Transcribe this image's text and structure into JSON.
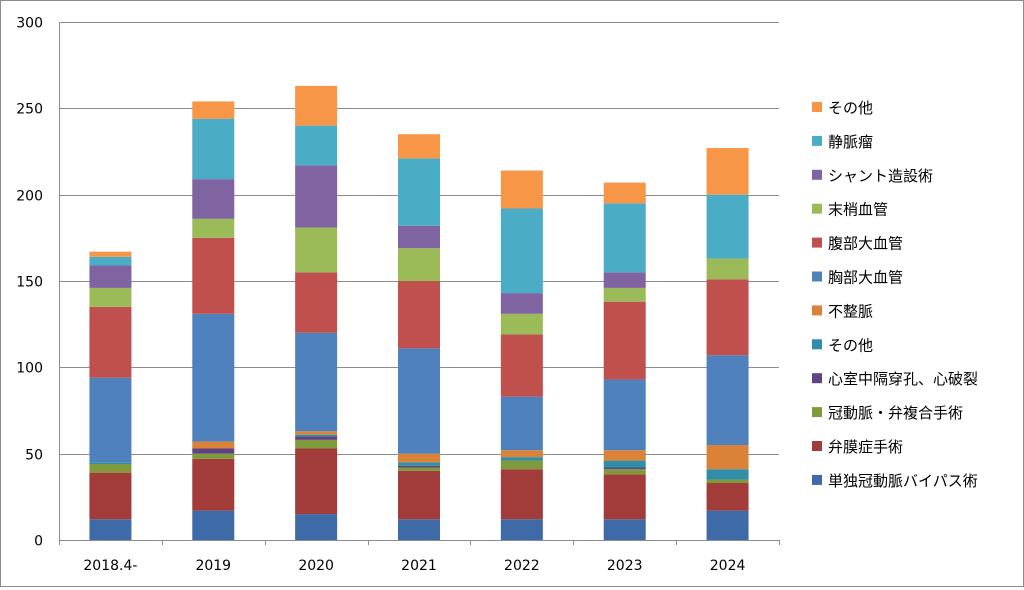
{
  "chart_data": {
    "type": "bar",
    "stacked": true,
    "categories": [
      "2018.4-",
      "2019",
      "2020",
      "2021",
      "2022",
      "2023",
      "2024"
    ],
    "ylim": [
      0,
      300
    ],
    "yticks": [
      0,
      50,
      100,
      150,
      200,
      250,
      300
    ],
    "grid": true,
    "legend_position": "right",
    "series": [
      {
        "name": "単独冠動脈バイパス術",
        "color": "#3f6aa8",
        "values": [
          12,
          17,
          15,
          12,
          12,
          12,
          17
        ]
      },
      {
        "name": "弁膜症手術",
        "color": "#a13c3a",
        "values": [
          27,
          30,
          38,
          28,
          29,
          26,
          16
        ]
      },
      {
        "name": "冠動脈・弁複合手術",
        "color": "#7f9a3c",
        "values": [
          5,
          3,
          5,
          2,
          5,
          3,
          2
        ]
      },
      {
        "name": "心室中隔穿孔、心破裂",
        "color": "#5e4483",
        "values": [
          0,
          3,
          2,
          1,
          0,
          1,
          0
        ]
      },
      {
        "name": "その他",
        "color": "#318ea8",
        "values": [
          1,
          0,
          1,
          2,
          2,
          4,
          6
        ]
      },
      {
        "name": "不整脈",
        "color": "#d98238",
        "values": [
          0,
          4,
          2,
          5,
          4,
          6,
          14
        ]
      },
      {
        "name": "胸部大血管",
        "color": "#4f81bd",
        "values": [
          49,
          74,
          57,
          61,
          31,
          41,
          52
        ]
      },
      {
        "name": "腹部大血管",
        "color": "#c0504d",
        "values": [
          41,
          44,
          35,
          39,
          36,
          45,
          44
        ]
      },
      {
        "name": "末梢血管",
        "color": "#9bbb59",
        "values": [
          11,
          11,
          26,
          19,
          12,
          8,
          12
        ]
      },
      {
        "name": "シャント造設術",
        "color": "#8064a2",
        "values": [
          13,
          23,
          36,
          13,
          12,
          9,
          0
        ]
      },
      {
        "name": "静脈瘤",
        "color": "#4bacc6",
        "values": [
          5,
          35,
          23,
          39,
          49,
          40,
          37
        ]
      },
      {
        "name": "その他",
        "color": "#f79646",
        "values": [
          3,
          10,
          23,
          14,
          22,
          12,
          27
        ]
      }
    ]
  }
}
